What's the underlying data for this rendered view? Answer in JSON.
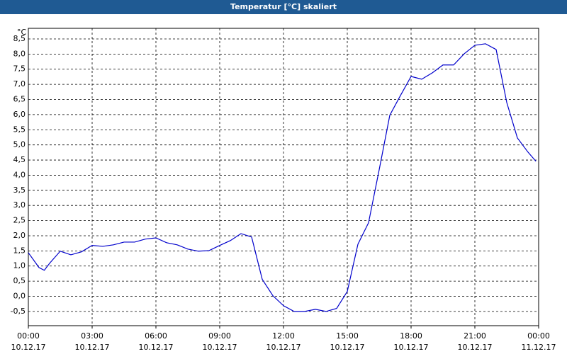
{
  "chart_data": {
    "type": "line",
    "title": "Temperatur [°C] skaliert",
    "y_unit": "°C",
    "x": [
      0,
      0.5,
      0.75,
      1,
      1.5,
      2,
      2.5,
      3,
      3.5,
      4,
      4.5,
      5,
      5.5,
      6,
      6.5,
      7,
      7.5,
      8,
      8.5,
      9,
      9.5,
      10,
      10.5,
      11,
      11.5,
      12,
      12.5,
      13,
      13.5,
      14,
      14.5,
      15,
      15.5,
      16,
      16.5,
      17,
      17.5,
      18,
      18.5,
      19,
      19.5,
      20,
      20.5,
      21,
      21.5,
      22,
      22.5,
      23,
      23.5,
      23.87
    ],
    "series": [
      {
        "name": "Temperatur",
        "color": "#0000cc",
        "values": [
          1.44,
          0.95,
          0.86,
          1.09,
          1.49,
          1.37,
          1.47,
          1.68,
          1.65,
          1.7,
          1.79,
          1.79,
          1.89,
          1.93,
          1.77,
          1.7,
          1.56,
          1.49,
          1.51,
          1.68,
          1.84,
          2.07,
          1.96,
          0.56,
          0.02,
          -0.31,
          -0.5,
          -0.5,
          -0.43,
          -0.5,
          -0.4,
          0.16,
          1.72,
          2.43,
          4.18,
          5.98,
          6.63,
          7.26,
          7.17,
          7.38,
          7.64,
          7.64,
          8.01,
          8.29,
          8.34,
          8.15,
          6.4,
          5.23,
          4.76,
          4.46
        ]
      }
    ],
    "xlim": [
      0,
      24
    ],
    "ylim": [
      -0.97,
      8.85
    ],
    "xticks": [
      {
        "value": 0,
        "label": "00:00",
        "date": "10.12.17"
      },
      {
        "value": 3,
        "label": "03:00",
        "date": "10.12.17"
      },
      {
        "value": 6,
        "label": "06:00",
        "date": "10.12.17"
      },
      {
        "value": 9,
        "label": "09:00",
        "date": "10.12.17"
      },
      {
        "value": 12,
        "label": "12:00",
        "date": "10.12.17"
      },
      {
        "value": 15,
        "label": "15:00",
        "date": "10.12.17"
      },
      {
        "value": 18,
        "label": "18:00",
        "date": "10.12.17"
      },
      {
        "value": 21,
        "label": "21:00",
        "date": "10.12.17"
      },
      {
        "value": 24,
        "label": "00:00",
        "date": "11.12.17"
      }
    ],
    "yticks": [
      {
        "value": -0.5,
        "label": "-0,5"
      },
      {
        "value": 0,
        "label": "0,0"
      },
      {
        "value": 0.5,
        "label": "0,5"
      },
      {
        "value": 1,
        "label": "1,0"
      },
      {
        "value": 1.5,
        "label": "1,5"
      },
      {
        "value": 2,
        "label": "2,0"
      },
      {
        "value": 2.5,
        "label": "2,5"
      },
      {
        "value": 3,
        "label": "3,0"
      },
      {
        "value": 3.5,
        "label": "3,5"
      },
      {
        "value": 4,
        "label": "4,0"
      },
      {
        "value": 4.5,
        "label": "4,5"
      },
      {
        "value": 5,
        "label": "5,0"
      },
      {
        "value": 5.5,
        "label": "5,5"
      },
      {
        "value": 6,
        "label": "6,0"
      },
      {
        "value": 6.5,
        "label": "6,5"
      },
      {
        "value": 7,
        "label": "7,0"
      },
      {
        "value": 7.5,
        "label": "7,5"
      },
      {
        "value": 8,
        "label": "8,0"
      },
      {
        "value": 8.5,
        "label": "8,5"
      }
    ],
    "grid": true
  }
}
